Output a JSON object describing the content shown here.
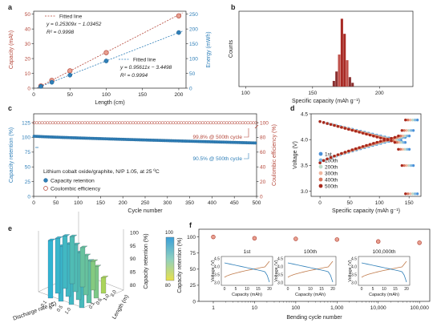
{
  "colors": {
    "red": "#b5473a",
    "blue": "#2f7fb8",
    "dark": "#222222",
    "grid": "#cccccc"
  },
  "panels": {
    "a": {
      "label": "a",
      "xlabel": "Length (cm)",
      "ylabel_left": "Capacity (mAh)",
      "ylabel_right": "Energy (mWh)",
      "xticks": [
        0,
        50,
        100,
        150,
        200
      ],
      "yticks_left": [
        0,
        10,
        20,
        30,
        40,
        50
      ],
      "yticks_right": [
        0,
        50,
        100,
        150,
        200,
        250
      ],
      "xlim": [
        0,
        210
      ],
      "ylim_left": [
        0,
        52
      ],
      "ylim_right": [
        0,
        260
      ],
      "capacity": {
        "x": [
          10,
          25,
          50,
          100,
          200
        ],
        "y": [
          1.5,
          5.3,
          11.7,
          24.0,
          48.9
        ]
      },
      "energy": {
        "x": [
          10,
          25,
          50,
          100,
          200
        ],
        "y": [
          6,
          20,
          44,
          92,
          188
        ]
      },
      "fit_cap": {
        "legend": "Fitted line",
        "eq": "y = 0.25309x − 1.03452",
        "r2": "R² = 0.9998"
      },
      "fit_energy": {
        "legend": "Fitted line",
        "eq": "y = 0.95611x − 3.4498",
        "r2": "R² = 0.9994"
      }
    },
    "b": {
      "label": "b",
      "xlabel": "Specific capacity (mAh g⁻¹)",
      "ylabel": "Counts",
      "xticks": [
        100,
        150,
        200
      ],
      "xlim": [
        95,
        225
      ],
      "ylim": [
        0,
        40
      ],
      "bins": [
        {
          "x": 166,
          "c": 3
        },
        {
          "x": 168,
          "c": 8
        },
        {
          "x": 170,
          "c": 17
        },
        {
          "x": 172,
          "c": 36
        },
        {
          "x": 174,
          "c": 28
        },
        {
          "x": 176,
          "c": 14
        },
        {
          "x": 178,
          "c": 5
        },
        {
          "x": 180,
          "c": 2
        }
      ]
    },
    "c": {
      "label": "c",
      "xlabel": "Cycle number",
      "ylabel_left": "Capacity retention (%)",
      "ylabel_right": "Coulombic efficiency (%)",
      "xticks": [
        0,
        50,
        100,
        150,
        200,
        250,
        300,
        350,
        400,
        450,
        500
      ],
      "yticks_left": [
        0,
        25,
        50,
        75,
        100,
        125
      ],
      "yticks_right": [
        0,
        20,
        40,
        60,
        80,
        100
      ],
      "xlim": [
        0,
        500
      ],
      "ylim_left": [
        0,
        140
      ],
      "ylim_right": [
        0,
        112
      ],
      "retention_start": 102,
      "retention_end": 90.5,
      "ce_value": 99.8,
      "ann_ce": "99.8% @ 500th cycle",
      "ann_ret": "90.5% @ 500th cycle",
      "info": "Lithium cobalt oxide/graphite, N/P 1.05, at 25 ºC",
      "legend": [
        "Capacity retention",
        "Coulombic efficiency"
      ]
    },
    "d": {
      "label": "d",
      "xlabel": "Specific capacity (mAh g⁻¹)",
      "ylabel": "Voltage (V)",
      "xticks": [
        0,
        50,
        100,
        150
      ],
      "yticks": [
        3.0,
        3.5,
        4.0,
        4.5
      ],
      "xlim": [
        -15,
        170
      ],
      "ylim": [
        2.9,
        4.5
      ],
      "series": [
        {
          "name": "1st",
          "color": "#4a90d9",
          "cap": 164
        },
        {
          "name": "100th",
          "color": "#7fb8e0",
          "cap": 160
        },
        {
          "name": "200th",
          "color": "#bcd9c9",
          "cap": 156
        },
        {
          "name": "300th",
          "color": "#f0b8a0",
          "cap": 152
        },
        {
          "name": "400th",
          "color": "#d87860",
          "cap": 148
        },
        {
          "name": "500th",
          "color": "#a8281c",
          "cap": 144
        }
      ]
    },
    "e": {
      "label": "e",
      "zlabel": "Capacity retention (%)",
      "xlabel": "Discharge rate (C)",
      "ylabel": "Length (m)",
      "zticks": [
        80,
        85,
        90,
        95,
        100
      ],
      "rates": [
        "0.1",
        "0.2",
        "0.5",
        "1.0"
      ],
      "lengths": [
        "0.1",
        "0.5",
        "1.0",
        "2.0"
      ],
      "values": [
        [
          100,
          99,
          98,
          97
        ],
        [
          99,
          98,
          96,
          94
        ],
        [
          98,
          96,
          93,
          90
        ],
        [
          96,
          93,
          89,
          84
        ]
      ],
      "cbar_ticks": [
        "100",
        "80"
      ]
    },
    "f": {
      "label": "f",
      "xlabel": "Bending cycle number",
      "ylabel": "Capacity retention (%)",
      "xticks": [
        "1",
        "10",
        "100",
        "1,000",
        "10,000",
        "100,000"
      ],
      "yticks": [
        0,
        25,
        50,
        75,
        100
      ],
      "points": [
        {
          "x": 1,
          "y": 100
        },
        {
          "x": 10,
          "y": 98
        },
        {
          "x": 100,
          "y": 97
        },
        {
          "x": 1000,
          "y": 96
        },
        {
          "x": 10000,
          "y": 93
        },
        {
          "x": 100000,
          "y": 91
        }
      ],
      "insets": [
        {
          "title": "1st"
        },
        {
          "title": "100th"
        },
        {
          "title": "100,000th"
        }
      ],
      "inset_ylabel": "Voltage (V)",
      "inset_xlabel": "Capacity (mAh)",
      "inset_xticks": [
        "0",
        "5",
        "10",
        "15",
        "20"
      ],
      "inset_yticks": [
        "3.0",
        "3.5",
        "4.0",
        "4.5"
      ]
    }
  }
}
